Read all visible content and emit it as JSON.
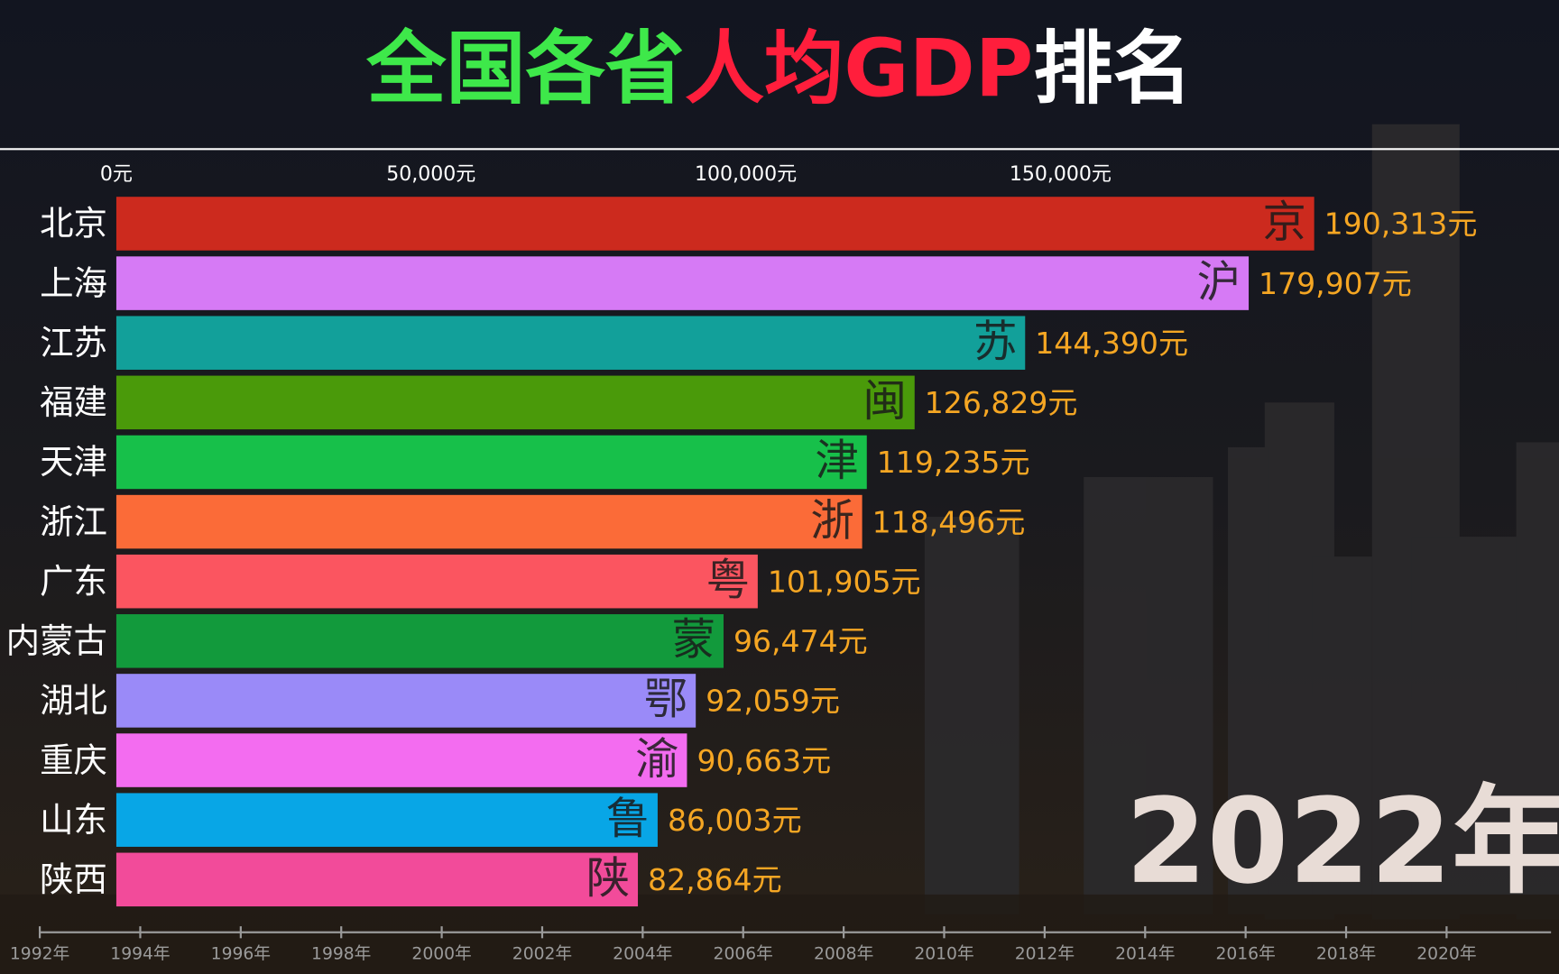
{
  "chart_data": {
    "type": "bar",
    "orientation": "horizontal",
    "title_parts": [
      {
        "text": "全国各省",
        "color": "#3ee84a"
      },
      {
        "text": "人均GDP",
        "color": "#ff1e3c"
      },
      {
        "text": "排名",
        "color": "#ffffff"
      }
    ],
    "categories": [
      "北京",
      "上海",
      "江苏",
      "福建",
      "天津",
      "浙江",
      "广东",
      "内蒙古",
      "湖北",
      "重庆",
      "山东",
      "陕西"
    ],
    "values": [
      190313,
      179907,
      144390,
      126829,
      119235,
      118496,
      101905,
      96474,
      92059,
      90663,
      86003,
      82864
    ],
    "value_labels": [
      "190,313元",
      "179,907元",
      "144,390元",
      "126,829元",
      "119,235元",
      "118,496元",
      "101,905元",
      "96,474元",
      "92,059元",
      "90,663元",
      "86,003元",
      "82,864元"
    ],
    "bar_icons": [
      "京",
      "沪",
      "苏",
      "闽",
      "津",
      "浙",
      "粤",
      "蒙",
      "鄂",
      "渝",
      "鲁",
      "陕"
    ],
    "colors": [
      "#cc2a1e",
      "#d67af5",
      "#12a09a",
      "#4a9a0a",
      "#17c04a",
      "#fb6b38",
      "#fb5560",
      "#129a3c",
      "#9a8af8",
      "#f36cf0",
      "#08a6e6",
      "#f24b9a"
    ],
    "xlim": [
      0,
      230000
    ],
    "xticks": [
      {
        "value": 0,
        "label": "0元"
      },
      {
        "value": 50000,
        "label": "50,000元"
      },
      {
        "value": 100000,
        "label": "100,000元"
      },
      {
        "value": 150000,
        "label": "150,000元"
      }
    ],
    "year_label": "2022年",
    "timeline": {
      "lim": [
        1992,
        2022
      ],
      "ticks": [
        {
          "value": 1992,
          "label": "1992年"
        },
        {
          "value": 1994,
          "label": "1994年"
        },
        {
          "value": 1996,
          "label": "1996年"
        },
        {
          "value": 1998,
          "label": "1998年"
        },
        {
          "value": 2000,
          "label": "2000年"
        },
        {
          "value": 2002,
          "label": "2002年"
        },
        {
          "value": 2004,
          "label": "2004年"
        },
        {
          "value": 2006,
          "label": "2006年"
        },
        {
          "value": 2008,
          "label": "2008年"
        },
        {
          "value": 2010,
          "label": "2010年"
        },
        {
          "value": 2012,
          "label": "2012年"
        },
        {
          "value": 2014,
          "label": "2014年"
        },
        {
          "value": 2016,
          "label": "2016年"
        },
        {
          "value": 2018,
          "label": "2018年"
        },
        {
          "value": 2020,
          "label": "2020年"
        }
      ]
    }
  }
}
